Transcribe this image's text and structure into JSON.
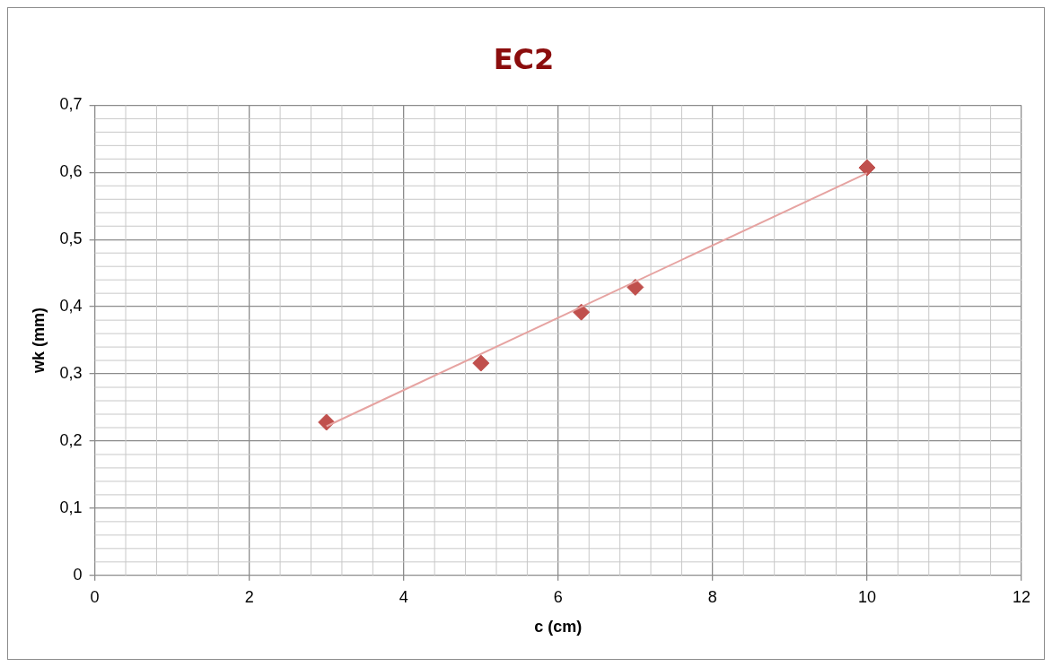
{
  "chart_data": {
    "type": "scatter",
    "title": "EC2",
    "xlabel": "c (cm)",
    "ylabel": "wk (mm)",
    "series": [
      {
        "type": "scatter",
        "color": "#c0504d",
        "x": [
          3,
          5,
          6.3,
          7,
          10
        ],
        "values": [
          0.228,
          0.316,
          0.392,
          0.429,
          0.607
        ],
        "marker": "diamond"
      },
      {
        "type": "line",
        "color": "#e6a3a1",
        "x": [
          3,
          10
        ],
        "values": [
          0.222,
          0.599
        ],
        "marker": "none",
        "line_style": "solid"
      }
    ],
    "xlim": [
      0,
      12
    ],
    "xticks": [
      0,
      2,
      4,
      6,
      8,
      10,
      12
    ],
    "ylim": [
      0,
      0.7
    ],
    "yticks": [
      {
        "value": 0,
        "label": "0"
      },
      {
        "value": 0.1,
        "label": "0,1"
      },
      {
        "value": 0.2,
        "label": "0,2"
      },
      {
        "value": 0.3,
        "label": "0,3"
      },
      {
        "value": 0.4,
        "label": "0,4"
      },
      {
        "value": 0.5,
        "label": "0,5"
      },
      {
        "value": 0.6,
        "label": "0,6"
      },
      {
        "value": 0.7,
        "label": "0,7"
      }
    ],
    "grid": true,
    "legend": false
  }
}
